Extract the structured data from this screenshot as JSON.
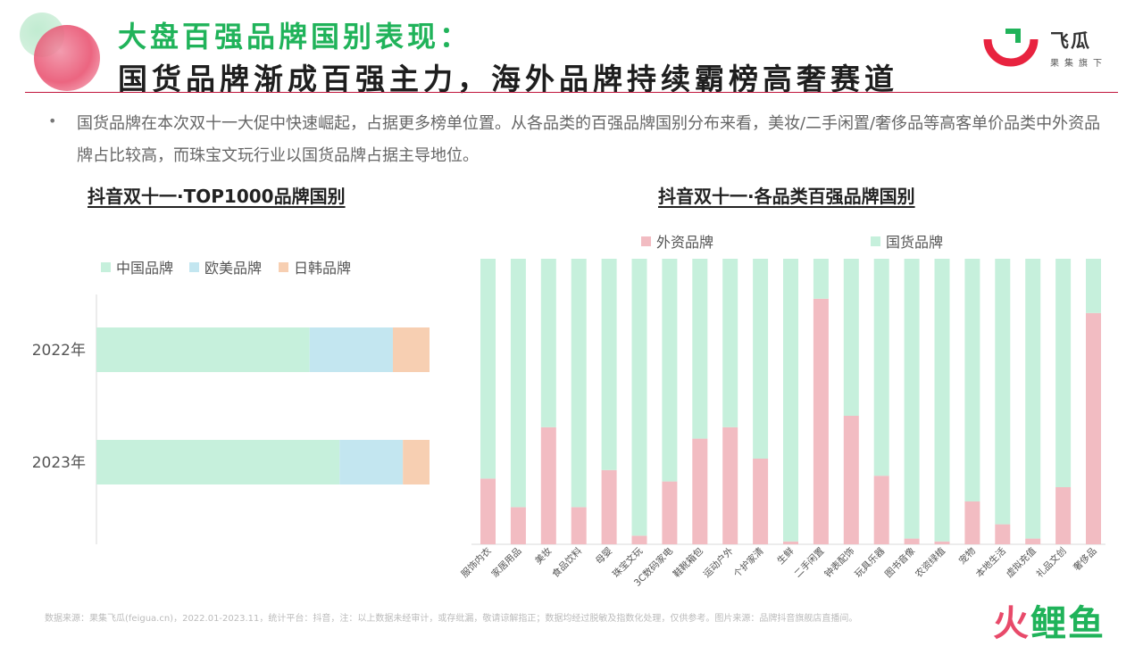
{
  "header": {
    "title_line1": "大盘百强品牌国别表现：",
    "title_line2": "国货品牌渐成百强主力，海外品牌持续霸榜高奢赛道"
  },
  "logo": {
    "name": "飞瓜",
    "sub": "果集旗下"
  },
  "body": {
    "bullet": "•",
    "text": "国货品牌在本次双十一大促中快速崛起，占据更多榜单位置。从各品类的百强品牌国别分布来看，美妆/二手闲置/奢侈品等高客单价品类中外资品牌占比较高，而珠宝文玩行业以国货品牌占据主导地位。"
  },
  "colors": {
    "green": "#c6f0dc",
    "blue": "#c3e6f0",
    "peach": "#f7cfb2",
    "pink": "#f2bcc2"
  },
  "chart_data": [
    {
      "type": "bar",
      "orientation": "horizontal",
      "stacked": true,
      "title": "抖音双十一·TOP1000品牌国别",
      "categories": [
        "2022年",
        "2023年"
      ],
      "series": [
        {
          "name": "中国品牌",
          "color": "#c6f0dc",
          "values": [
            64,
            73
          ]
        },
        {
          "name": "欧美品牌",
          "color": "#c3e6f0",
          "values": [
            25,
            19
          ]
        },
        {
          "name": "日韩品牌",
          "color": "#f7cfb2",
          "values": [
            11,
            8
          ]
        }
      ],
      "xlim": [
        0,
        100
      ],
      "legend": "top-left",
      "grid": false
    },
    {
      "type": "bar",
      "stacked": true,
      "title": "抖音双十一·各品类百强品牌国别",
      "categories": [
        "服饰内衣",
        "家居用品",
        "美妆",
        "食品饮料",
        "母婴",
        "珠宝文玩",
        "3C数码家电",
        "鞋靴箱包",
        "运动户外",
        "个护家清",
        "生鲜",
        "二手闲置",
        "钟表配饰",
        "玩具乐器",
        "图书音像",
        "农资绿植",
        "宠物",
        "本地生活",
        "虚拟充值",
        "礼品文创",
        "奢侈品"
      ],
      "series": [
        {
          "name": "外资品牌",
          "color": "#f2bcc2",
          "values": [
            23,
            13,
            41,
            13,
            26,
            3,
            22,
            37,
            41,
            30,
            1,
            86,
            45,
            24,
            2,
            1,
            15,
            7,
            2,
            20,
            81
          ]
        },
        {
          "name": "国货品牌",
          "color": "#c6f0dc",
          "values": [
            77,
            87,
            59,
            87,
            74,
            97,
            78,
            63,
            59,
            70,
            99,
            14,
            55,
            76,
            98,
            99,
            85,
            93,
            98,
            80,
            19
          ]
        }
      ],
      "ylim": [
        0,
        100
      ],
      "legend": "top",
      "grid": false
    }
  ],
  "footer": {
    "source": "数据来源：果集飞瓜(feigua.cn)，2022.01-2023.11，统计平台：抖音，注：以上数据未经审计，或存纰漏，敬请谅解指正；数据均经过脱敏及指数化处理，仅供参考。图片来源：品牌抖音旗舰店直播间。"
  },
  "watermark": {
    "part1": "火",
    "part2": "鲤鱼"
  }
}
